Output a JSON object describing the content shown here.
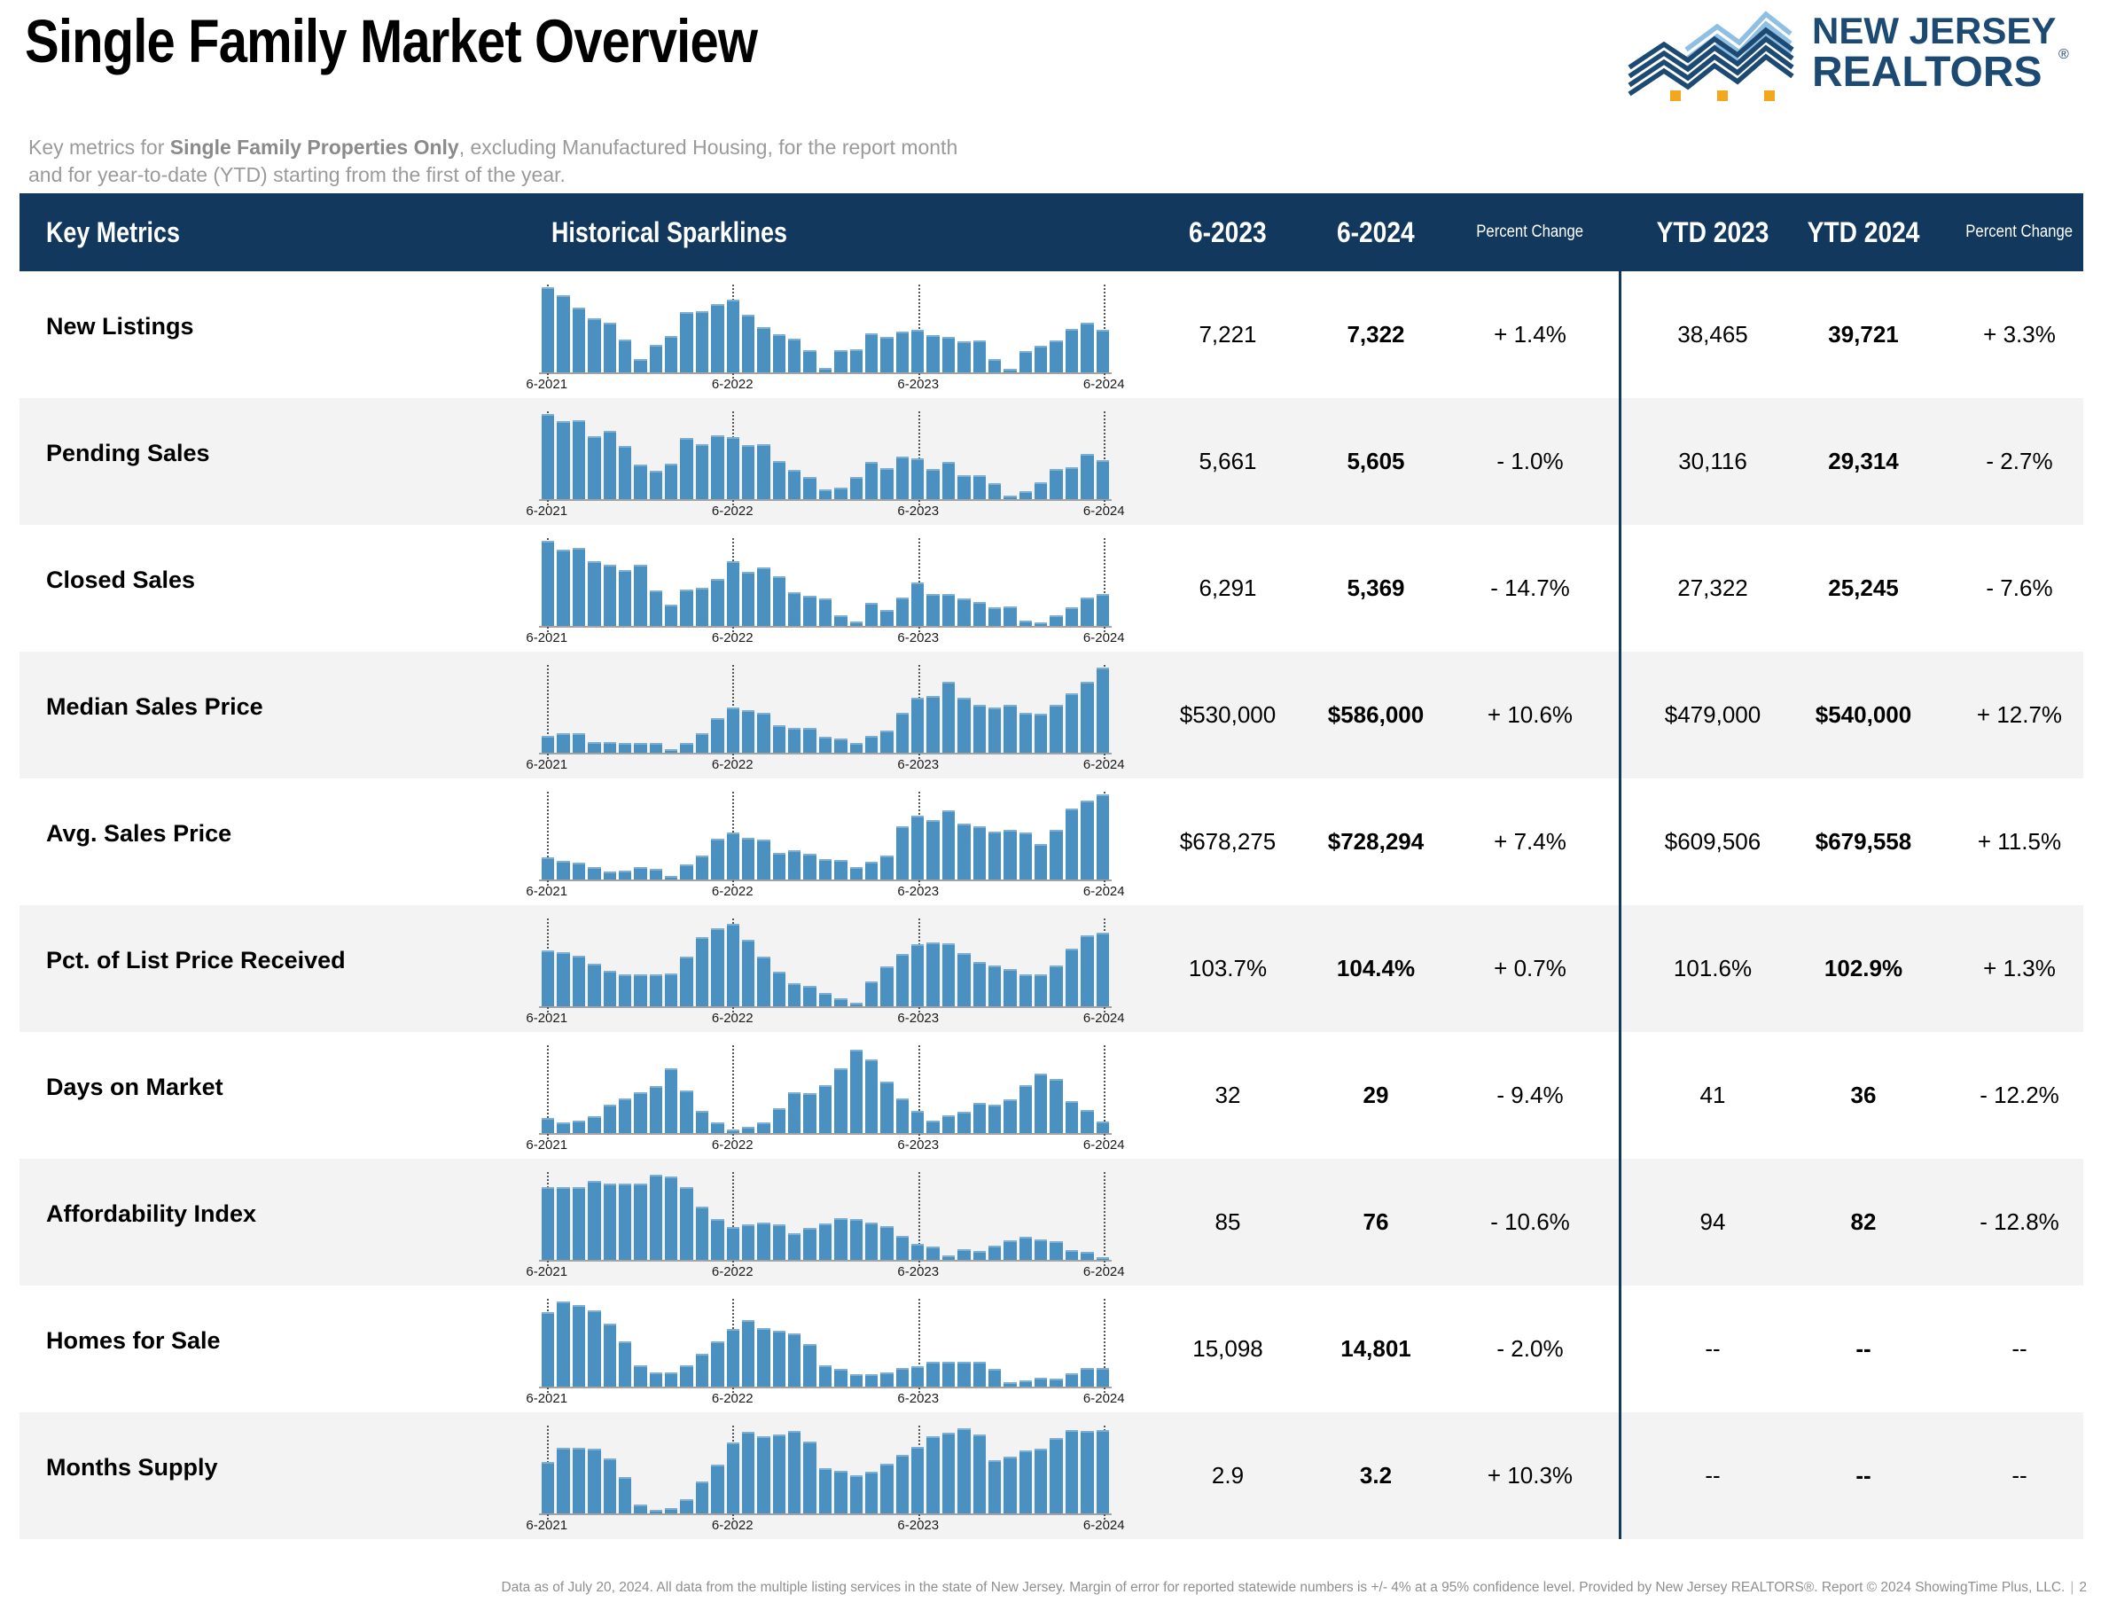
{
  "page": {
    "title": "Single Family Market Overview",
    "subtitle_prefix": "Key metrics for ",
    "subtitle_bold": "Single Family Properties Only",
    "subtitle_suffix": ", excluding Manufactured Housing, for the report month and for year-to-date (YTD) starting from the first of the year.",
    "footer": "Data as of July 20, 2024. All data from the multiple listing services in the state of New Jersey. Margin of error for reported statewide numbers is +/- 4% at a 95% confidence level. Provided by New Jersey REALTORS®. Report © 2024 ShowingTime Plus, LLC.",
    "footer_divider": "|",
    "page_number": "2"
  },
  "logo": {
    "line1": "NEW JERSEY",
    "line2": "REALTORS",
    "registered": "®"
  },
  "colors": {
    "header_bg": "#12395d",
    "row_alt_bg": "#f3f3f3",
    "bar_blue": "#4a91c2",
    "divider": "#12395d",
    "logo_navy": "#1c4a73",
    "logo_light_blue": "#8fc0e3",
    "logo_orange": "#f2a71c",
    "subtitle_gray": "#9a9a9a",
    "footer_gray": "#8f8f8f",
    "axis_text": "#1a1a1a",
    "baseline_gray": "#a3a3a3",
    "gridline_gray": "#555555"
  },
  "table": {
    "headers": {
      "key_metrics": "Key Metrics",
      "sparklines": "Historical Sparklines",
      "month_prev": "6-2023",
      "month_curr": "6-2024",
      "pct_change_1": "Percent Change",
      "ytd_prev": "YTD 2023",
      "ytd_curr": "YTD 2024",
      "pct_change_2": "Percent Change"
    },
    "axis_labels": [
      "6-2021",
      "6-2022",
      "6-2023",
      "6-2024"
    ],
    "rows": [
      {
        "label": "New Listings",
        "m2023": "7,221",
        "m2024": "7,322",
        "pct1": "+ 1.4%",
        "ytd2023": "38,465",
        "ytd2024": "39,721",
        "pct2": "+ 3.3%",
        "spark": [
          100,
          91,
          76,
          64,
          58,
          39,
          16,
          32,
          43,
          71,
          72,
          80,
          85,
          68,
          53,
          45,
          40,
          26,
          5,
          26,
          27,
          46,
          42,
          48,
          50,
          44,
          42,
          36,
          37,
          16,
          4,
          25,
          31,
          38,
          51,
          58,
          50
        ]
      },
      {
        "label": "Pending Sales",
        "m2023": "5,661",
        "m2024": "5,605",
        "pct1": "- 1.0%",
        "ytd2023": "30,116",
        "ytd2024": "29,314",
        "pct2": "- 2.7%",
        "spark": [
          100,
          92,
          93,
          74,
          80,
          63,
          41,
          33,
          42,
          72,
          65,
          75,
          73,
          64,
          65,
          45,
          34,
          26,
          11,
          14,
          26,
          44,
          36,
          50,
          48,
          35,
          44,
          28,
          28,
          19,
          4,
          9,
          20,
          35,
          38,
          53,
          46
        ]
      },
      {
        "label": "Closed Sales",
        "m2023": "6,291",
        "m2024": "5,369",
        "pct1": "- 14.7%",
        "ytd2023": "27,322",
        "ytd2024": "25,245",
        "pct2": "- 7.6%",
        "spark": [
          100,
          90,
          92,
          76,
          72,
          66,
          72,
          42,
          25,
          43,
          45,
          55,
          76,
          64,
          69,
          58,
          40,
          35,
          32,
          12,
          5,
          27,
          19,
          33,
          51,
          37,
          38,
          32,
          28,
          22,
          23,
          6,
          4,
          13,
          22,
          33,
          38
        ]
      },
      {
        "label": "Median Sales Price",
        "m2023": "$530,000",
        "m2024": "$586,000",
        "pct1": "+ 10.6%",
        "ytd2023": "$479,000",
        "ytd2024": "$540,000",
        "pct2": "+ 12.7%",
        "spark": [
          20,
          23,
          23,
          12,
          12,
          11,
          11,
          11,
          4,
          11,
          23,
          41,
          53,
          50,
          47,
          32,
          29,
          29,
          19,
          17,
          11,
          20,
          26,
          47,
          65,
          67,
          83,
          65,
          56,
          53,
          56,
          47,
          46,
          56,
          70,
          83,
          100
        ]
      },
      {
        "label": "Avg. Sales Price",
        "m2023": "$678,275",
        "m2024": "$728,294",
        "pct1": "+ 7.4%",
        "ytd2023": "$609,506",
        "ytd2024": "$679,558",
        "pct2": "+ 11.5%",
        "spark": [
          26,
          22,
          20,
          15,
          9,
          10,
          15,
          13,
          4,
          18,
          28,
          48,
          55,
          49,
          47,
          31,
          34,
          30,
          24,
          23,
          15,
          21,
          28,
          63,
          75,
          70,
          81,
          66,
          62,
          56,
          58,
          55,
          42,
          58,
          83,
          93,
          100
        ]
      },
      {
        "label": "Pct. of List Price Received",
        "m2023": "103.7%",
        "m2024": "104.4%",
        "pct1": "+ 0.7%",
        "ytd2023": "101.6%",
        "ytd2024": "102.9%",
        "pct2": "+ 1.3%",
        "spark": [
          66,
          64,
          59,
          50,
          42,
          38,
          38,
          37,
          39,
          58,
          81,
          92,
          97,
          78,
          58,
          41,
          27,
          24,
          16,
          9,
          4,
          29,
          47,
          61,
          73,
          75,
          74,
          62,
          52,
          48,
          44,
          37,
          37,
          48,
          68,
          83,
          86
        ]
      },
      {
        "label": "Days on Market",
        "m2023": "32",
        "m2024": "29",
        "pct1": "- 9.4%",
        "ytd2023": "41",
        "ytd2024": "36",
        "pct2": "- 12.2%",
        "spark": [
          18,
          12,
          15,
          20,
          33,
          41,
          48,
          55,
          76,
          50,
          26,
          13,
          4,
          7,
          12,
          29,
          48,
          47,
          56,
          76,
          98,
          86,
          60,
          41,
          26,
          15,
          21,
          25,
          35,
          33,
          40,
          56,
          70,
          64,
          38,
          27,
          14
        ]
      },
      {
        "label": "Affordability Index",
        "m2023": "85",
        "m2024": "76",
        "pct1": "- 10.6%",
        "ytd2023": "94",
        "ytd2024": "82",
        "pct2": "- 12.8%",
        "spark": [
          85,
          85,
          85,
          93,
          90,
          90,
          90,
          100,
          98,
          85,
          63,
          48,
          39,
          42,
          44,
          42,
          31,
          37,
          43,
          49,
          48,
          44,
          40,
          28,
          19,
          16,
          5,
          12,
          10,
          17,
          23,
          27,
          24,
          22,
          11,
          9,
          3
        ]
      },
      {
        "label": "Homes for Sale",
        "m2023": "15,098",
        "m2024": "14,801",
        "pct1": "- 2.0%",
        "ytd2023": "--",
        "ytd2024": "--",
        "pct2": "--",
        "spark": [
          88,
          100,
          96,
          90,
          74,
          53,
          25,
          17,
          17,
          25,
          39,
          53,
          68,
          78,
          69,
          66,
          62,
          50,
          25,
          21,
          15,
          15,
          17,
          22,
          24,
          29,
          29,
          29,
          29,
          21,
          5,
          7,
          10,
          9,
          16,
          22,
          22
        ]
      },
      {
        "label": "Months Supply",
        "m2023": "2.9",
        "m2024": "3.2",
        "pct1": "+ 10.3%",
        "ytd2023": "--",
        "ytd2024": "--",
        "pct2": "--",
        "spark": [
          60,
          77,
          77,
          76,
          65,
          43,
          10,
          4,
          6,
          17,
          37,
          57,
          83,
          96,
          91,
          93,
          97,
          84,
          53,
          50,
          45,
          49,
          58,
          69,
          78,
          91,
          95,
          100,
          93,
          63,
          67,
          74,
          76,
          89,
          98,
          97,
          98
        ]
      }
    ]
  }
}
